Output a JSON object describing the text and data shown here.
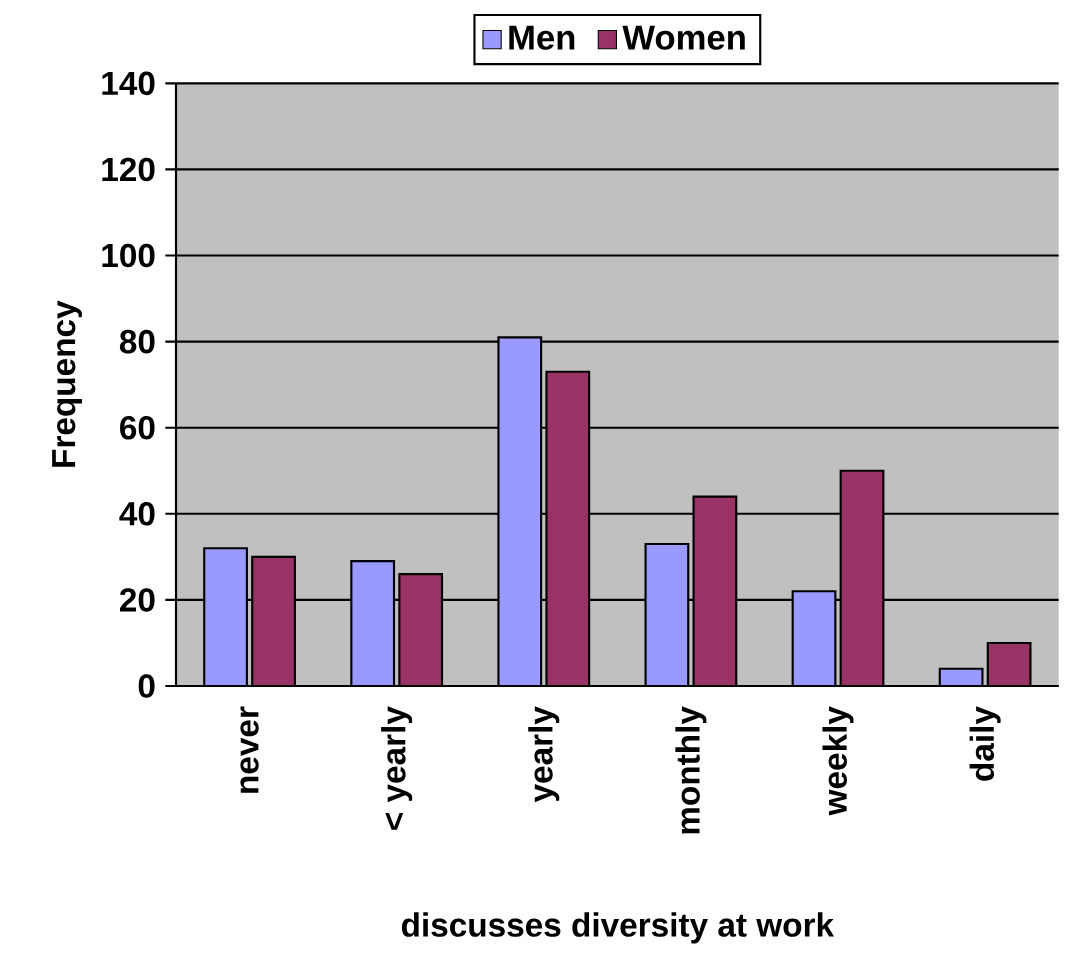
{
  "chart_data": {
    "type": "bar",
    "xlabel": "discusses diversity at work",
    "ylabel": "Frequency",
    "categories": [
      "never",
      "< yearly",
      "yearly",
      "monthly",
      "weekly",
      "daily"
    ],
    "series": [
      {
        "name": "Men",
        "color": "#9999ff",
        "values": [
          32,
          29,
          81,
          33,
          22,
          4
        ]
      },
      {
        "name": "Women",
        "color": "#993366",
        "values": [
          30,
          26,
          73,
          44,
          50,
          10
        ]
      }
    ],
    "ylim": [
      0,
      140
    ],
    "yticks": [
      0,
      20,
      40,
      60,
      80,
      100,
      120,
      140
    ],
    "grid": "y",
    "legend": "top"
  }
}
